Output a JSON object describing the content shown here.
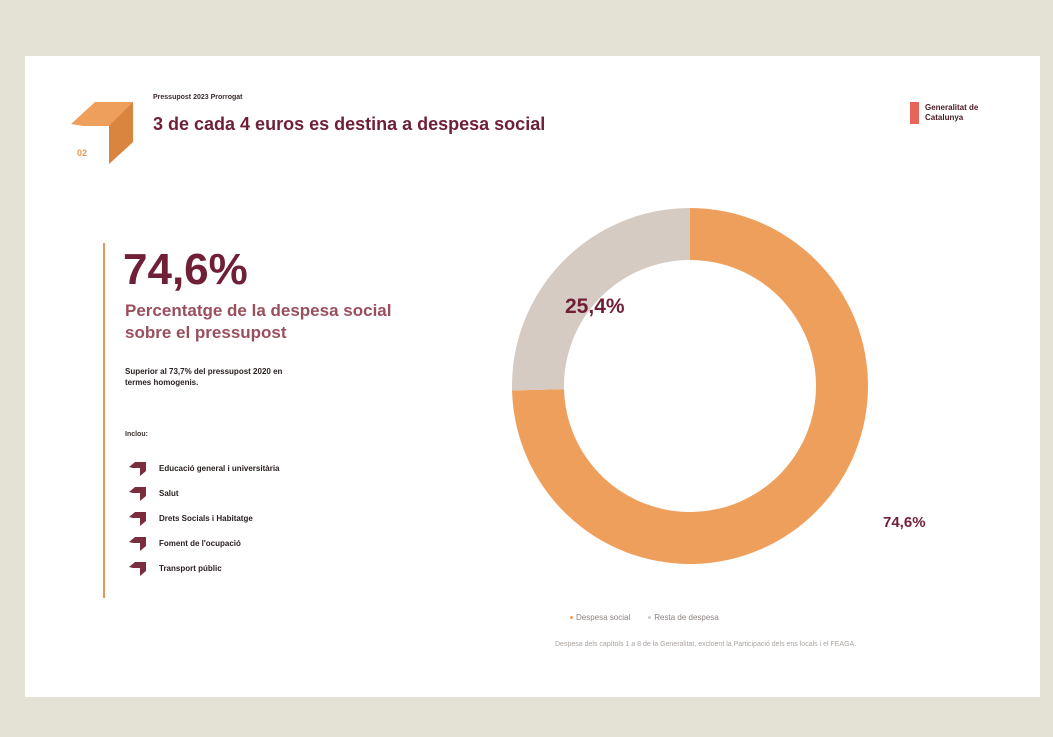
{
  "slide": {
    "section_number": "02",
    "supertitle": "Pressupost 2023 Prorrogat",
    "title": "3 de cada 4 euros es destina a despesa social",
    "brand_text": "Generalitat de Catalunya",
    "brand_color": "#e8645a",
    "accent_color": "#e8975a",
    "title_color": "#6f1f36"
  },
  "highlight": {
    "value": "74,6%",
    "subtitle": "Percentatge de la despesa social sobre el pressupost",
    "note": "Superior al 73,7% del pressupost 2020 en termes homogenis.",
    "includes_label": "Inclou:"
  },
  "items": [
    {
      "label": "Educació general i universitària",
      "icon": "arrow-bullet-icon"
    },
    {
      "label": "Salut",
      "icon": "arrow-bullet-icon"
    },
    {
      "label": "Drets Socials i Habitatge",
      "icon": "arrow-bullet-icon"
    },
    {
      "label": "Foment de l'ocupació",
      "icon": "arrow-bullet-icon"
    },
    {
      "label": "Transport públic",
      "icon": "arrow-bullet-icon"
    }
  ],
  "source": "Despesa dels capítols 1 a 8 de la Generalitat, excloent la Participació dels ens locals i el FEAGA.",
  "chart_data": {
    "type": "pie",
    "donut": true,
    "title": "",
    "categories": [
      "Despesa social",
      "Resta de despesa"
    ],
    "values": [
      74.6,
      25.4
    ],
    "labels": [
      "74,6%",
      "25,4%"
    ],
    "colors": [
      "#ef9f5c",
      "#d6cbc2"
    ],
    "legend": "bottom"
  }
}
